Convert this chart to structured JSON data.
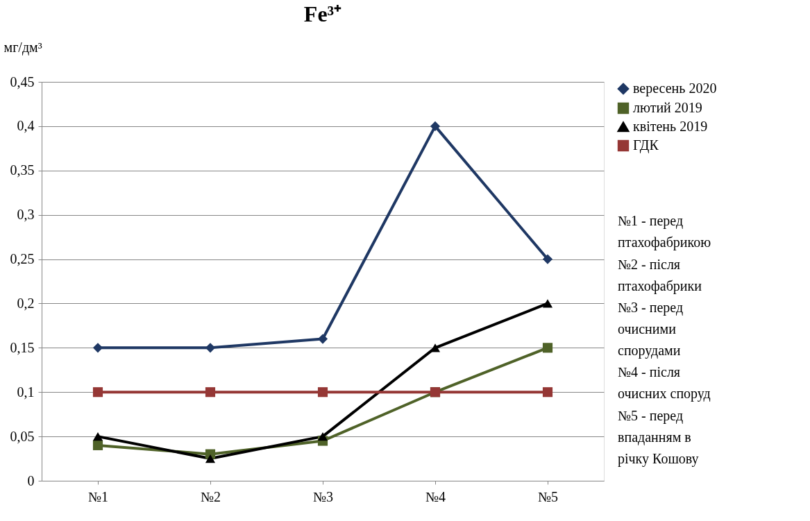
{
  "chart_data": {
    "type": "line",
    "title": "Fe³⁺",
    "ylabel": "мг/дм³",
    "categories": [
      "№1",
      "№2",
      "№3",
      "№4",
      "№5"
    ],
    "series": [
      {
        "name": "вересень 2020",
        "color": "#1f3864",
        "marker": "diamond",
        "values": [
          0.15,
          0.15,
          0.16,
          0.4,
          0.25
        ]
      },
      {
        "name": "лютий 2019",
        "color": "#4f6228",
        "marker": "square",
        "values": [
          0.04,
          0.03,
          0.045,
          0.1,
          0.15
        ]
      },
      {
        "name": "квітень 2019",
        "color": "#000000",
        "marker": "triangle",
        "values": [
          0.05,
          0.025,
          0.05,
          0.15,
          0.2
        ]
      },
      {
        "name": "ГДК",
        "color": "#953735",
        "marker": "square",
        "values": [
          0.1,
          0.1,
          0.1,
          0.1,
          0.1
        ]
      }
    ],
    "ylim": [
      0,
      0.45
    ],
    "yticks": [
      0,
      {
        "value": 0.05,
        "label": "0,05"
      },
      {
        "value": 0.1,
        "label": "0,1"
      },
      {
        "value": 0.15,
        "label": "0,15"
      },
      {
        "value": 0.2,
        "label": "0,2"
      },
      {
        "value": 0.25,
        "label": "0,25"
      },
      {
        "value": 0.3,
        "label": "0,3"
      },
      {
        "value": 0.35,
        "label": "0,35"
      },
      {
        "value": 0.4,
        "label": "0,4"
      },
      {
        "value": 0.45,
        "label": "0,45"
      }
    ],
    "grid": "y",
    "legend": "right",
    "line_style": "solid",
    "annotations": [
      "№1 - перед птахофабрикою",
      "№2 - після птахофабрики",
      "№3 - перед очисними спорудами",
      "№4 - після очисних споруд",
      "№5 - перед впаданням в річку Кошову"
    ]
  }
}
